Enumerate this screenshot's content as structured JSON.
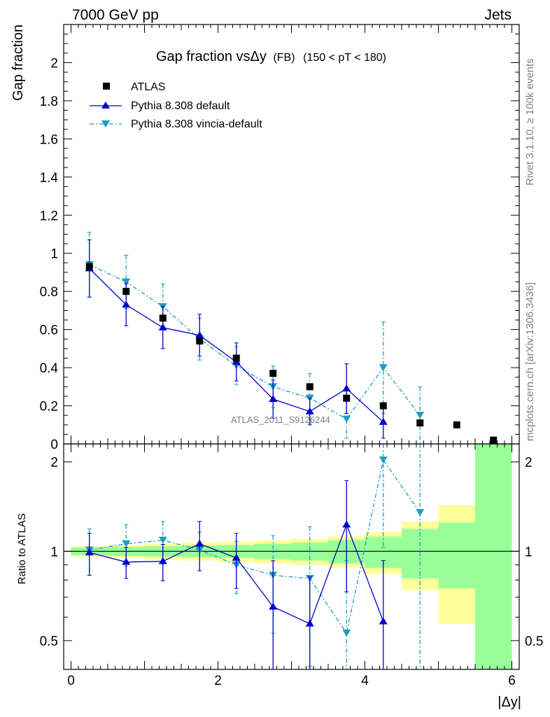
{
  "header": {
    "left": "7000 GeV pp",
    "right": "Jets"
  },
  "side_labels": {
    "top": "Rivet 3.1.10, ≥ 100k events",
    "bottom": "mcplots.cern.ch [arXiv:1306.3436]"
  },
  "watermark": "ATLAS_2011_S9126244",
  "plot_title": {
    "main": "Gap fraction vsΔy",
    "sub1": "(FB)",
    "sub2": "(150 < pT < 180)"
  },
  "axes": {
    "ylabel_main": "Gap fraction",
    "ylabel_ratio": "Ratio to ATLAS",
    "xlabel": "|Δy|",
    "main_yticks": [
      "0",
      "0.2",
      "0.4",
      "0.6",
      "0.8",
      "1",
      "1.2",
      "1.4",
      "1.6",
      "1.8",
      "2"
    ],
    "ratio_yticks": [
      "0.5",
      "1",
      "2"
    ],
    "xticks": [
      "0",
      "2",
      "4",
      "6"
    ]
  },
  "legend": [
    "ATLAS",
    "Pythia 8.308 default",
    "Pythia 8.308 vincia-default"
  ],
  "colors": {
    "data": "#000000",
    "default": "#0000cc",
    "vincia": "#1a9ebf",
    "band_inner": "#99ff99",
    "band_outer": "#ffff99"
  },
  "chart_data": {
    "type": "scatter",
    "x_bins": [
      [
        0,
        0.5
      ],
      [
        0.5,
        1
      ],
      [
        1,
        1.5
      ],
      [
        1.5,
        2
      ],
      [
        2,
        2.5
      ],
      [
        2.5,
        3
      ],
      [
        3,
        3.5
      ],
      [
        3.5,
        4
      ],
      [
        4,
        4.5
      ],
      [
        4.5,
        5
      ],
      [
        5,
        5.5
      ],
      [
        5.5,
        6
      ]
    ],
    "x": [
      0.25,
      0.75,
      1.25,
      1.75,
      2.25,
      2.75,
      3.25,
      3.75,
      4.25,
      4.75,
      5.25,
      5.75
    ],
    "xlim": [
      -0.1,
      6.1
    ],
    "main_ylim": [
      0,
      2.2
    ],
    "ratio_ylim": [
      0.4,
      2.3
    ],
    "ratio_log": true,
    "series": [
      {
        "name": "ATLAS",
        "y": [
          0.93,
          0.8,
          0.66,
          0.54,
          0.45,
          0.37,
          0.3,
          0.24,
          0.2,
          0.11,
          0.1,
          0.02
        ],
        "ratio_band_inner": [
          0.03,
          0.035,
          0.04,
          0.045,
          0.05,
          0.06,
          0.07,
          0.09,
          0.12,
          0.19,
          0.25,
          1.5
        ],
        "ratio_band_outer": [
          0.04,
          0.05,
          0.06,
          0.07,
          0.08,
          0.09,
          0.1,
          0.12,
          0.16,
          0.26,
          0.43,
          1.5
        ]
      },
      {
        "name": "Pythia 8.308 default",
        "y": [
          0.92,
          0.73,
          0.61,
          0.57,
          0.43,
          0.235,
          0.17,
          0.29,
          0.115
        ],
        "yerr": [
          0.15,
          0.11,
          0.11,
          0.11,
          0.1,
          0.1,
          0.07,
          0.13,
          0.085
        ],
        "ratio": [
          0.99,
          0.92,
          0.925,
          1.06,
          0.95,
          0.65,
          0.57,
          1.23,
          0.58
        ],
        "ratio_err": [
          0.16,
          0.11,
          0.13,
          0.2,
          0.2,
          0.28,
          0.25,
          0.5,
          0.35
        ]
      },
      {
        "name": "Pythia 8.308 vincia-default",
        "y": [
          0.94,
          0.85,
          0.72,
          0.55,
          0.41,
          0.3,
          0.24,
          0.13,
          0.4,
          0.15
        ],
        "yerr": [
          0.17,
          0.14,
          0.12,
          0.11,
          0.1,
          0.11,
          0.13,
          0.1,
          0.24,
          0.15
        ],
        "ratio": [
          1.01,
          1.06,
          1.09,
          1.01,
          0.9,
          0.83,
          0.81,
          0.53,
          2.03,
          1.35
        ],
        "ratio_err": [
          0.18,
          0.17,
          0.17,
          0.15,
          0.18,
          0.3,
          0.4,
          0.4,
          1.0,
          1.3
        ]
      }
    ]
  }
}
